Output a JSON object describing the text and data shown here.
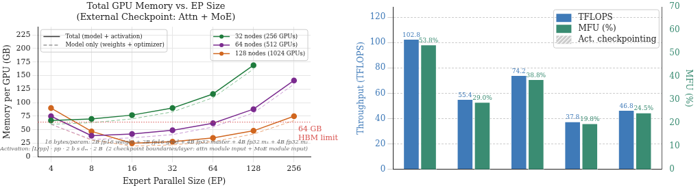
{
  "chart_data": [
    {
      "type": "line",
      "title": "Total GPU Memory vs. EP Size",
      "subtitle": "(External Checkpoint: Attn + MoE)",
      "xlabel": "Expert Parallel Size (EP)",
      "ylabel": "Memory per GPU (GB)",
      "x": [
        4,
        8,
        16,
        32,
        64,
        128,
        256
      ],
      "xlim": [
        3.2,
        340
      ],
      "xticks": [
        4,
        8,
        16,
        32,
        64,
        128,
        256
      ],
      "ylim": [
        0,
        240
      ],
      "yticks": [
        0,
        25,
        50,
        75,
        100,
        125,
        150,
        175,
        200,
        225
      ],
      "log": "x",
      "grid": true,
      "legend": "top right",
      "series": [
        {
          "name": "32 nodes (256 GPUs)",
          "color": "#1e7b3c",
          "values": [
            67,
            70,
            77,
            90,
            116,
            169,
            null
          ],
          "marker": "circle",
          "line_style": "solid"
        },
        {
          "name": "64 nodes (512 GPUs)",
          "color": "#7b2b8f",
          "values": [
            75,
            39,
            42,
            49,
            62,
            88,
            141
          ],
          "marker": "circle",
          "line_style": "solid"
        },
        {
          "name": "128 nodes (1024 GPUs)",
          "color": "#d0661f",
          "values": [
            90,
            47,
            25,
            28,
            35,
            48,
            75
          ],
          "marker": "circle",
          "line_style": "solid"
        },
        {
          "color": "#86c295",
          "values": [
            60,
            63,
            70,
            83,
            109,
            162,
            null
          ],
          "marker": "none",
          "line_style": "dashed"
        },
        {
          "color": "#c99bd4",
          "values": [
            60,
            32,
            35,
            41,
            55,
            81,
            134
          ],
          "marker": "none",
          "line_style": "dashed"
        },
        {
          "color": "#eba77a",
          "values": [
            60,
            31,
            20,
            22,
            28,
            42,
            67
          ],
          "marker": "none",
          "line_style": "dashed"
        },
        {
          "name": "Total (model + activation)",
          "color": "#333333",
          "values": [
            null,
            null,
            null,
            null,
            null,
            null,
            null
          ],
          "marker": "none",
          "line_style": "solid"
        },
        {
          "name": "Model only (weights + optimizer)",
          "color": "#999999",
          "values": [
            null,
            null,
            null,
            null,
            null,
            null,
            null
          ],
          "marker": "none",
          "line_style": "dashed"
        }
      ],
      "ref_lines": [
        {
          "axis": "y",
          "value": 64,
          "label": "64 GB\nHBM limit",
          "color": "#d9534f",
          "line_style": "dotted"
        }
      ],
      "annotations": [
        "16 bytes/param: 2B fp16 weight + 2B fp16 grad + 4B fp32 master + 4B fp32 m₁ + 4B fp32 m₂",
        "Activation: ⌈L/pp⌉ · pp · 2 b s dₘ · 2 B  (2 checkpoint boundaries/layer: attn module input + MoE module input)"
      ]
    },
    {
      "type": "bar",
      "categories": [
        null,
        null,
        null,
        null,
        null
      ],
      "ylabel": "Throughput (TFLOPS)",
      "y2label": "MFU (%)",
      "ylim": [
        0,
        128
      ],
      "yticks": [
        0,
        20,
        40,
        60,
        80,
        100,
        120
      ],
      "y2lim": [
        0,
        70
      ],
      "y2ticks": [
        0,
        10,
        20,
        30,
        40,
        50,
        60,
        70
      ],
      "grid": "y",
      "legend": "top right",
      "series": [
        {
          "name": "TFLOPS",
          "color": "#3f7ab8",
          "values": [
            102.8,
            55.4,
            74.2,
            37.8,
            46.8
          ],
          "value_labels": [
            "102.8",
            "55.4",
            "74.2",
            "37.8",
            "46.8"
          ]
        },
        {
          "name": "MFU (%)",
          "color": "#3a8c72",
          "axis": "y2",
          "values": [
            53.8,
            29.0,
            38.8,
            19.8,
            24.5
          ],
          "value_labels": [
            "53.8%",
            "29.0%",
            "38.8%",
            "19.8%",
            "24.5%"
          ]
        },
        {
          "name": "Act. checkpointing",
          "color": "#cccccc",
          "values": [
            null,
            null,
            null,
            null,
            null
          ]
        }
      ]
    }
  ]
}
